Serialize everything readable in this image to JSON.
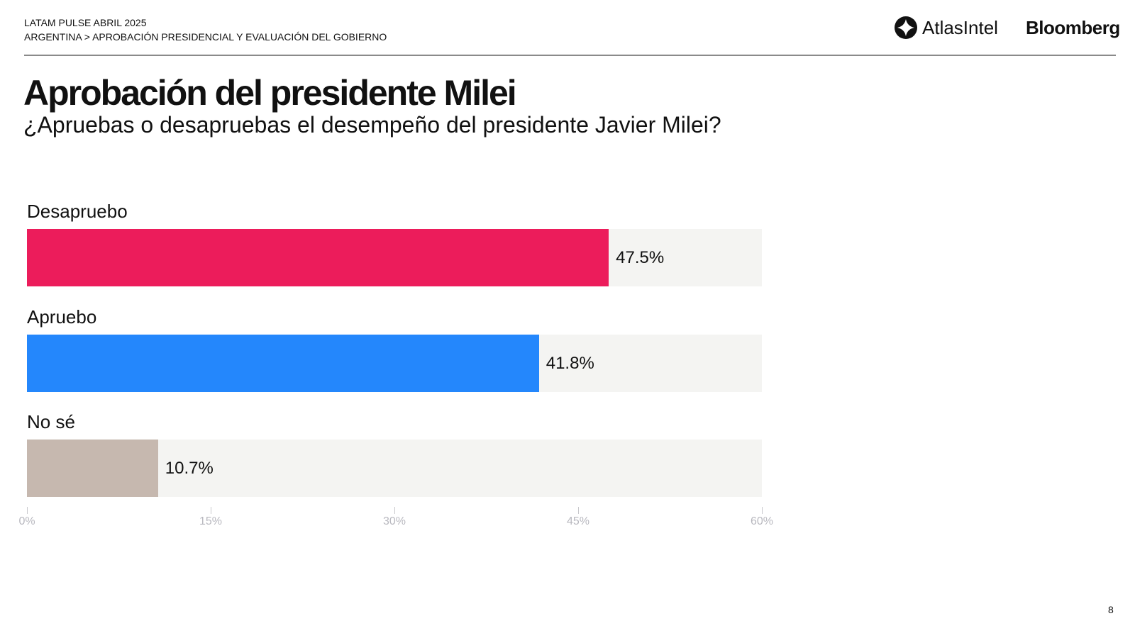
{
  "header": {
    "line1": "LATAM PULSE ABRIL 2025",
    "line2": "ARGENTINA > APROBACIÓN PRESIDENCIAL Y EVALUACIÓN DEL GOBIERNO",
    "logo_atlas": "AtlasIntel",
    "logo_bloomberg": "Bloomberg"
  },
  "page_number": "8",
  "chart_data": {
    "type": "bar",
    "orientation": "horizontal",
    "title": "Aprobación del presidente Milei",
    "subtitle": "¿Apruebas o desapruebas el desempeño del presidente Javier Milei?",
    "categories": [
      "Desapruebo",
      "Apruebo",
      "No sé"
    ],
    "values": [
      47.5,
      41.8,
      10.7
    ],
    "value_labels": [
      "47.5%",
      "41.8%",
      "10.7%"
    ],
    "colors": [
      "#ec1c5b",
      "#2487fc",
      "#c6b8af"
    ],
    "xlim": [
      0,
      60
    ],
    "ticks": [
      0,
      15,
      30,
      45,
      60
    ],
    "tick_labels": [
      "0%",
      "15%",
      "30%",
      "45%",
      "60%"
    ],
    "grid": false
  }
}
